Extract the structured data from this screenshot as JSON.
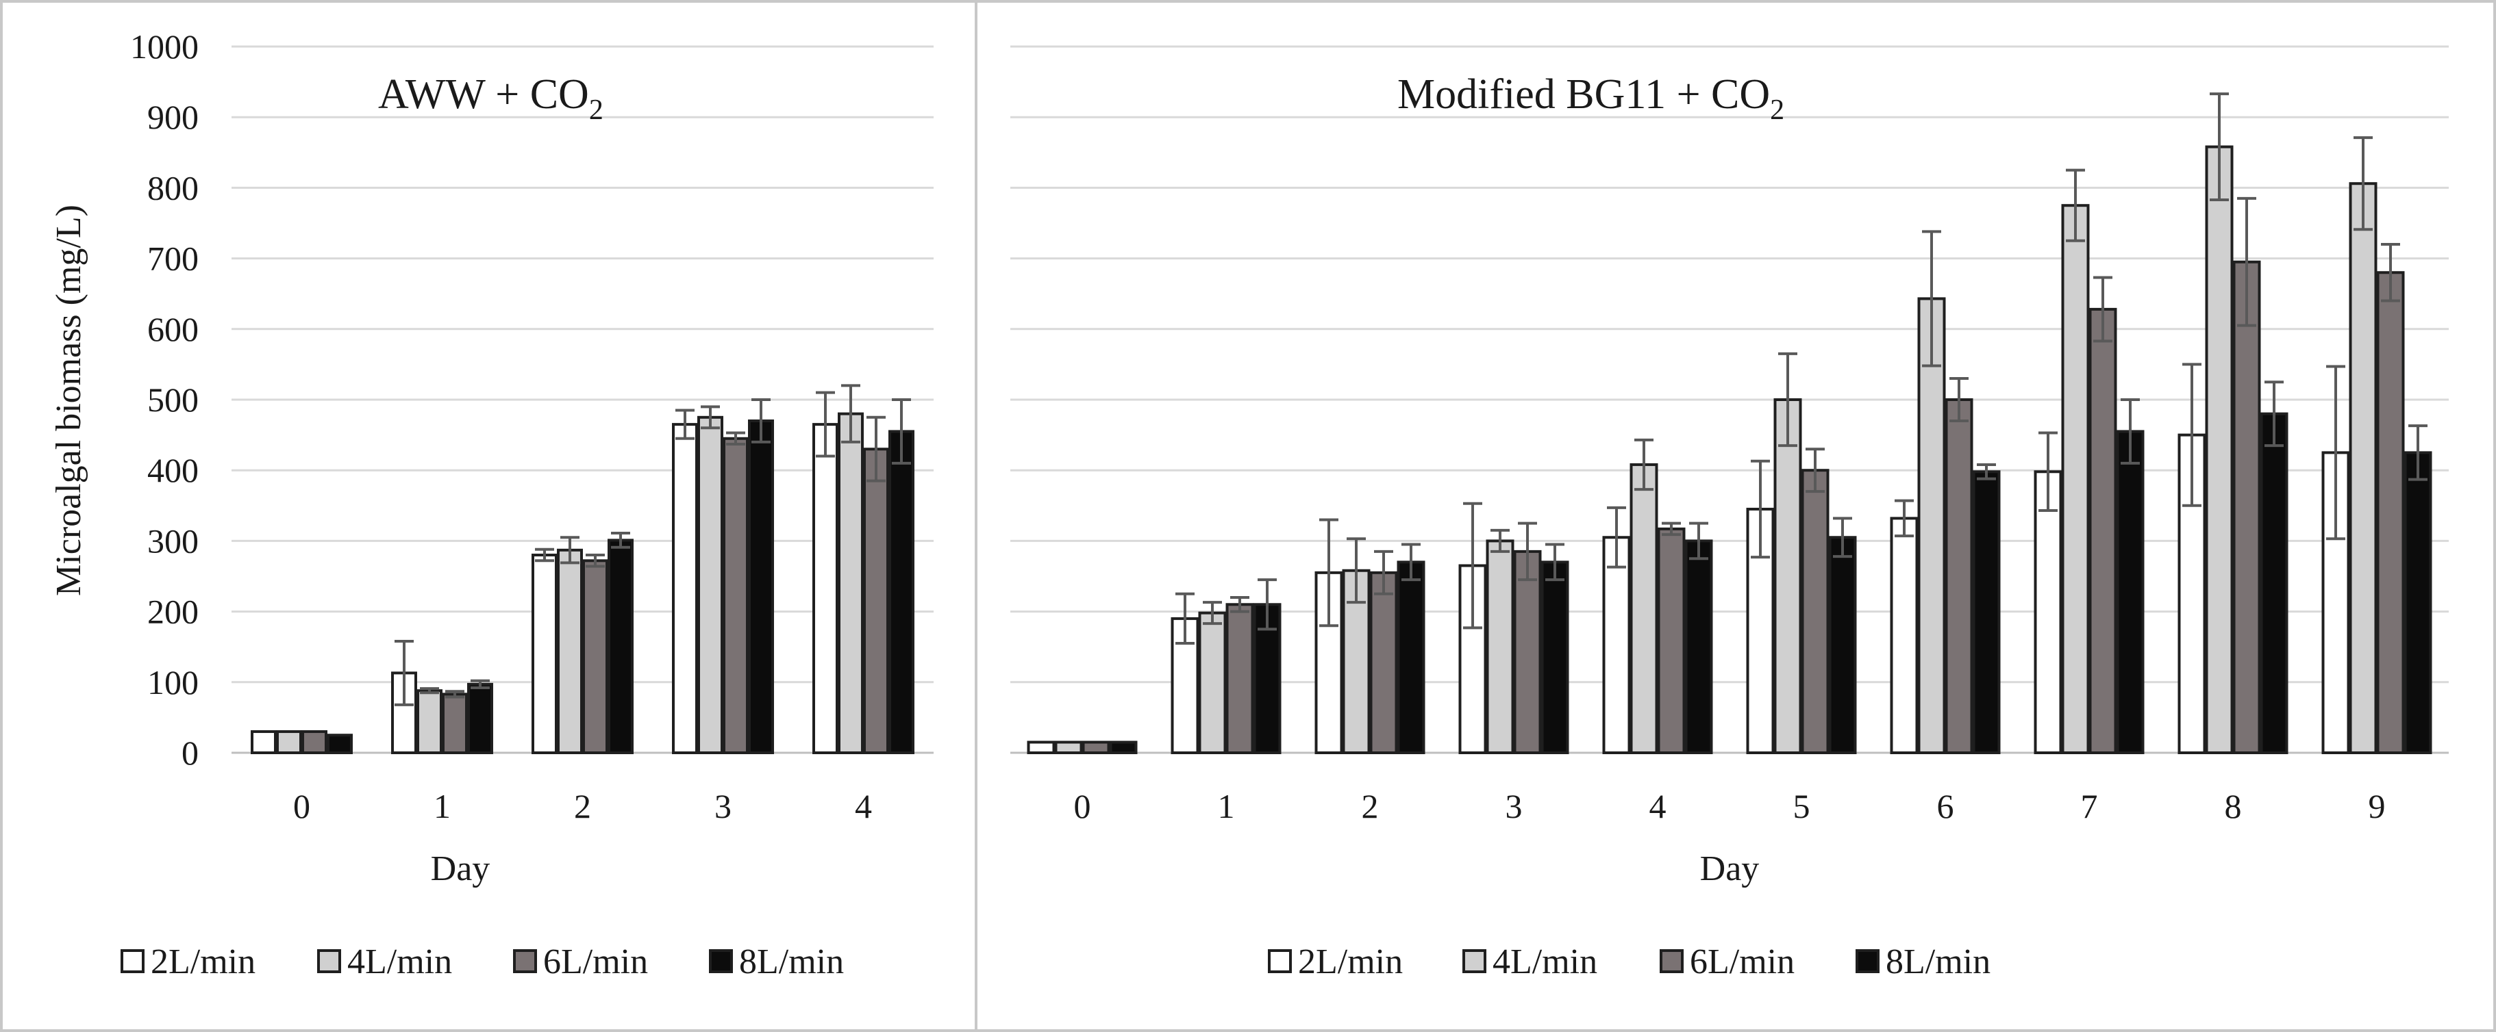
{
  "y_axis_label": "Microalgal biomass (mg/L)",
  "y_ticks": [
    "0",
    "100",
    "200",
    "300",
    "400",
    "500",
    "600",
    "700",
    "800",
    "900",
    "1000"
  ],
  "colors": {
    "2L/min": "#ffffff",
    "4L/min": "#d0d0d0",
    "6L/min": "#7a7273",
    "8L/min": "#0c0c0c",
    "outline": "#1f1f1f",
    "grid": "#d9d9d9",
    "error": "#595959",
    "frame": "#c8c8c8"
  },
  "chart_data": [
    {
      "type": "bar",
      "title": "AWW + CO",
      "title_subscript": "2",
      "xlabel": "Day",
      "ylabel": "Microalgal biomass (mg/L)",
      "ylim": [
        0,
        1000
      ],
      "categories": [
        "0",
        "1",
        "2",
        "3",
        "4"
      ],
      "legend_position": "bottom",
      "series": [
        {
          "name": "2L/min",
          "color": "#ffffff",
          "values": [
            30,
            113,
            280,
            465,
            465
          ],
          "errors": [
            0,
            45,
            8,
            20,
            45
          ]
        },
        {
          "name": "4L/min",
          "color": "#d0d0d0",
          "values": [
            30,
            88,
            287,
            475,
            480
          ],
          "errors": [
            0,
            3,
            18,
            15,
            40
          ]
        },
        {
          "name": "6L/min",
          "color": "#7a7273",
          "values": [
            30,
            83,
            272,
            445,
            430
          ],
          "errors": [
            0,
            4,
            8,
            8,
            45
          ]
        },
        {
          "name": "8L/min",
          "color": "#0c0c0c",
          "values": [
            25,
            97,
            301,
            470,
            455
          ],
          "errors": [
            0,
            5,
            10,
            30,
            45
          ]
        }
      ]
    },
    {
      "type": "bar",
      "title": "Modified BG11 + CO",
      "title_subscript": "2",
      "xlabel": "Day",
      "ylabel": "",
      "ylim": [
        0,
        1000
      ],
      "categories": [
        "0",
        "1",
        "2",
        "3",
        "4",
        "5",
        "6",
        "7",
        "8",
        "9"
      ],
      "legend_position": "bottom",
      "series": [
        {
          "name": "2L/min",
          "color": "#ffffff",
          "values": [
            15,
            190,
            255,
            265,
            305,
            345,
            332,
            398,
            450,
            425
          ],
          "errors": [
            0,
            35,
            75,
            88,
            42,
            68,
            25,
            55,
            100,
            122
          ]
        },
        {
          "name": "4L/min",
          "color": "#d0d0d0",
          "values": [
            15,
            198,
            258,
            300,
            408,
            500,
            643,
            775,
            858,
            806
          ],
          "errors": [
            0,
            15,
            45,
            15,
            35,
            65,
            95,
            50,
            75,
            65
          ]
        },
        {
          "name": "6L/min",
          "color": "#7a7273",
          "values": [
            15,
            210,
            255,
            285,
            317,
            400,
            500,
            628,
            695,
            680
          ],
          "errors": [
            0,
            10,
            30,
            40,
            8,
            30,
            30,
            45,
            90,
            40
          ]
        },
        {
          "name": "8L/min",
          "color": "#0c0c0c",
          "values": [
            15,
            210,
            270,
            270,
            300,
            305,
            398,
            455,
            480,
            425
          ],
          "errors": [
            0,
            35,
            25,
            25,
            25,
            27,
            10,
            45,
            45,
            38
          ]
        }
      ]
    }
  ]
}
